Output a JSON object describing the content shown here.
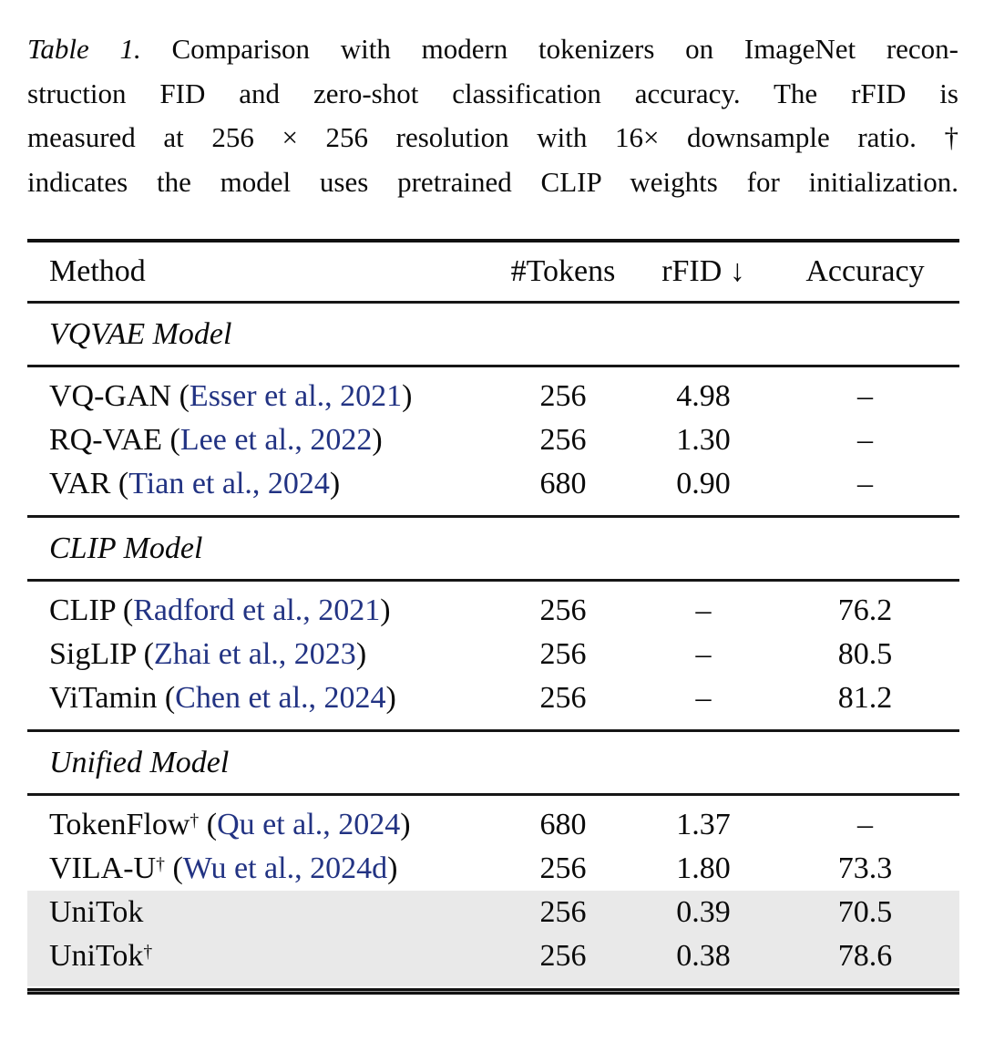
{
  "caption": {
    "label": "Table 1.",
    "line1": "Comparison with modern tokenizers on ImageNet recon-",
    "line2": "struction FID and zero-shot classification accuracy. The rFID is",
    "line3": "measured at 256 × 256 resolution with 16× downsample ratio. †",
    "line4": "indicates the model uses pretrained CLIP weights for initialization."
  },
  "table": {
    "columns": [
      "Method",
      "#Tokens",
      "rFID ↓",
      "Accuracy"
    ],
    "sections": [
      {
        "title": "VQVAE Model",
        "rows": [
          {
            "name": "VQ-GAN",
            "dagger": "",
            "po": " (",
            "cite": "Esser et al., 2021",
            "pc": ")",
            "tokens": "256",
            "rfid": "4.98",
            "acc": "–",
            "highlight": false
          },
          {
            "name": "RQ-VAE",
            "dagger": "",
            "po": " (",
            "cite": "Lee et al., 2022",
            "pc": ")",
            "tokens": "256",
            "rfid": "1.30",
            "acc": "–",
            "highlight": false
          },
          {
            "name": "VAR",
            "dagger": "",
            "po": " (",
            "cite": "Tian et al., 2024",
            "pc": ")",
            "tokens": "680",
            "rfid": "0.90",
            "acc": "–",
            "highlight": false
          }
        ]
      },
      {
        "title": "CLIP Model",
        "rows": [
          {
            "name": "CLIP",
            "dagger": "",
            "po": " (",
            "cite": "Radford et al., 2021",
            "pc": ")",
            "tokens": "256",
            "rfid": "–",
            "acc": "76.2",
            "highlight": false
          },
          {
            "name": "SigLIP",
            "dagger": "",
            "po": " (",
            "cite": "Zhai et al., 2023",
            "pc": ")",
            "tokens": "256",
            "rfid": "–",
            "acc": "80.5",
            "highlight": false
          },
          {
            "name": "ViTamin",
            "dagger": "",
            "po": " (",
            "cite": "Chen et al., 2024",
            "pc": ")",
            "tokens": "256",
            "rfid": "–",
            "acc": "81.2",
            "highlight": false
          }
        ]
      },
      {
        "title": "Unified Model",
        "rows": [
          {
            "name": "TokenFlow",
            "dagger": "†",
            "po": " (",
            "cite": "Qu et al., 2024",
            "pc": ")",
            "tokens": "680",
            "rfid": "1.37",
            "acc": "–",
            "highlight": false
          },
          {
            "name": "VILA-U",
            "dagger": "†",
            "po": " (",
            "cite": "Wu et al., 2024d",
            "pc": ")",
            "tokens": "256",
            "rfid": "1.80",
            "acc": "73.3",
            "highlight": false
          },
          {
            "name": "UniTok",
            "dagger": "",
            "po": "",
            "cite": "",
            "pc": "",
            "tokens": "256",
            "rfid": "0.39",
            "acc": "70.5",
            "highlight": true
          },
          {
            "name": "UniTok",
            "dagger": "†",
            "po": "",
            "cite": "",
            "pc": "",
            "tokens": "256",
            "rfid": "0.38",
            "acc": "78.6",
            "highlight": true
          }
        ]
      }
    ]
  },
  "colors": {
    "citation_link": "#223383",
    "highlight_row": "#e9e9e9",
    "rule": "#111111"
  }
}
